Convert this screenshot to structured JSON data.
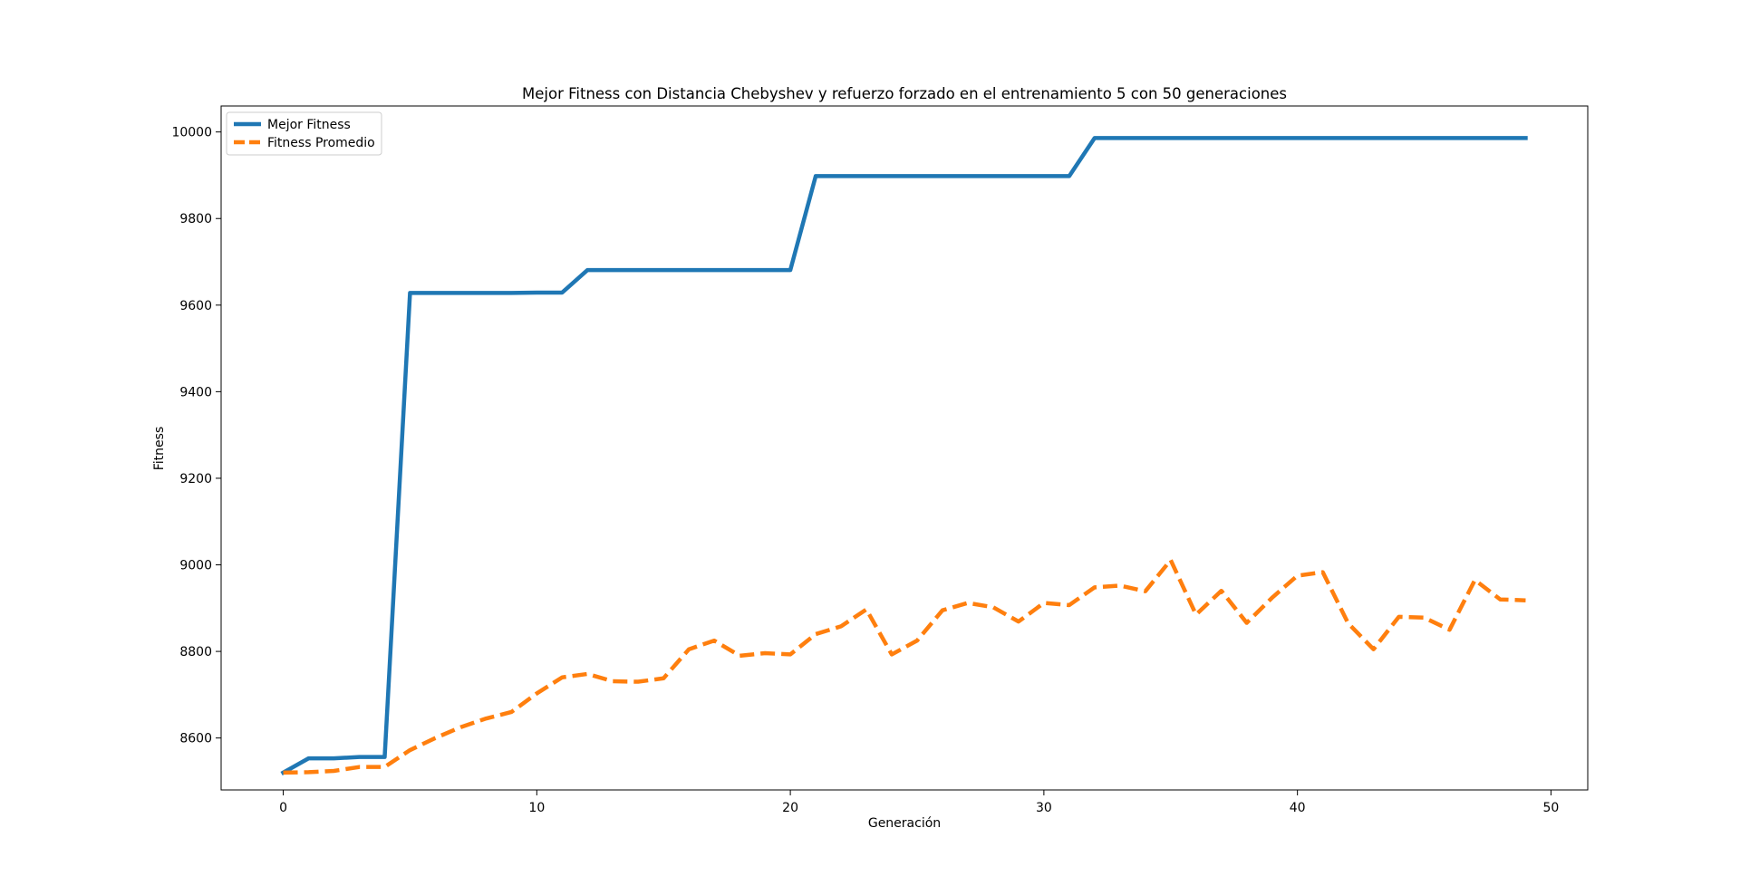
{
  "chart_data": {
    "type": "line",
    "title": "Mejor Fitness con Distancia Chebyshev y refuerzo forzado en el entrenamiento 5 con 50 generaciones",
    "xlabel": "Generación",
    "ylabel": "Fitness",
    "xlim": [
      -2.45,
      51.45
    ],
    "ylim": [
      8480,
      10060
    ],
    "xticks": [
      0,
      10,
      20,
      30,
      40,
      50
    ],
    "yticks": [
      8600,
      8800,
      9000,
      9200,
      9400,
      9600,
      9800,
      10000
    ],
    "grid": false,
    "legend_position": "top-left",
    "x": [
      0,
      1,
      2,
      3,
      4,
      5,
      6,
      7,
      8,
      9,
      10,
      11,
      12,
      13,
      14,
      15,
      16,
      17,
      18,
      19,
      20,
      21,
      22,
      23,
      24,
      25,
      26,
      27,
      28,
      29,
      30,
      31,
      32,
      33,
      34,
      35,
      36,
      37,
      38,
      39,
      40,
      41,
      42,
      43,
      44,
      45,
      46,
      47,
      48,
      49
    ],
    "series": [
      {
        "name": "Mejor Fitness",
        "color": "#1f77b4",
        "style": "solid",
        "values": [
          8520,
          8553,
          8553,
          8556,
          8556,
          9628,
          9628,
          9628,
          9628,
          9628,
          9629,
          9629,
          9681,
          9681,
          9681,
          9681,
          9681,
          9681,
          9681,
          9681,
          9681,
          9898,
          9898,
          9898,
          9898,
          9898,
          9898,
          9898,
          9898,
          9898,
          9898,
          9898,
          9986,
          9986,
          9986,
          9986,
          9986,
          9986,
          9986,
          9986,
          9986,
          9986,
          9986,
          9986,
          9986,
          9986,
          9986,
          9986,
          9986,
          9986
        ]
      },
      {
        "name": "Fitness Promedio",
        "color": "#ff7f0e",
        "style": "dashed",
        "values": [
          8520,
          8521,
          8524,
          8533,
          8533,
          8572,
          8600,
          8625,
          8645,
          8660,
          8703,
          8740,
          8748,
          8731,
          8730,
          8738,
          8805,
          8825,
          8790,
          8796,
          8793,
          8840,
          8858,
          8897,
          8793,
          8825,
          8895,
          8912,
          8902,
          8869,
          8912,
          8907,
          8948,
          8952,
          8939,
          9011,
          8885,
          8940,
          8866,
          8924,
          8975,
          8983,
          8865,
          8805,
          8880,
          8878,
          8850,
          8965,
          8920,
          8918
        ]
      }
    ]
  }
}
